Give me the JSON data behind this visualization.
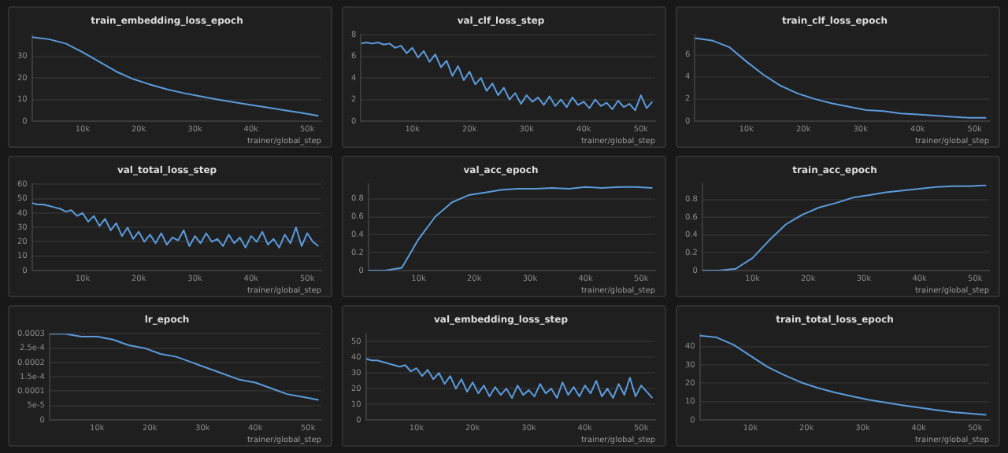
{
  "chart_data": [
    {
      "type": "line",
      "title": "train_embedding_loss_epoch",
      "xlabel": "trainer/global_step",
      "x": [
        1000,
        4000,
        7000,
        10000,
        13000,
        16000,
        19000,
        22000,
        25000,
        28000,
        31000,
        34000,
        37000,
        40000,
        43000,
        46000,
        49000,
        52000
      ],
      "series": [
        {
          "color": "#5b9bdc",
          "values": [
            39,
            38,
            36,
            32,
            27.5,
            23,
            19.5,
            17,
            14.8,
            13,
            11.5,
            10,
            8.8,
            7.5,
            6.3,
            5,
            3.8,
            2.5
          ]
        }
      ],
      "xlim": [
        1000,
        52500
      ],
      "xticks": [
        {
          "value": 10000,
          "label": "10k"
        },
        {
          "value": 20000,
          "label": "20k"
        },
        {
          "value": 30000,
          "label": "30k"
        },
        {
          "value": 40000,
          "label": "40k"
        },
        {
          "value": 50000,
          "label": "50k"
        }
      ],
      "ylim": [
        0,
        40
      ],
      "yticks": [
        0,
        10,
        20,
        30
      ],
      "grid": "y",
      "legend": false,
      "marker": "none"
    },
    {
      "type": "line",
      "title": "val_clf_loss_step",
      "xlabel": "trainer/global_step",
      "x": [
        1000,
        2000,
        3000,
        4000,
        5000,
        6000,
        7000,
        8000,
        9000,
        10000,
        11000,
        12000,
        13000,
        14000,
        15000,
        16000,
        17000,
        18000,
        19000,
        20000,
        21000,
        22000,
        23000,
        24000,
        25000,
        26000,
        27000,
        28000,
        29000,
        30000,
        31000,
        32000,
        33000,
        34000,
        35000,
        36000,
        37000,
        38000,
        39000,
        40000,
        41000,
        42000,
        43000,
        44000,
        45000,
        46000,
        47000,
        48000,
        49000,
        50000,
        51000,
        52000
      ],
      "series": [
        {
          "color": "#5b9bdc",
          "values": [
            7.2,
            7.3,
            7.2,
            7.3,
            7.1,
            7.2,
            6.8,
            7.0,
            6.3,
            6.8,
            5.9,
            6.5,
            5.5,
            6.2,
            5.0,
            5.6,
            4.2,
            5.1,
            3.8,
            4.6,
            3.4,
            4.0,
            2.8,
            3.5,
            2.4,
            3.1,
            2.0,
            2.6,
            1.6,
            2.4,
            1.8,
            2.2,
            1.5,
            2.3,
            1.4,
            2.0,
            1.3,
            2.2,
            1.5,
            1.8,
            1.2,
            2.0,
            1.4,
            1.7,
            1.1,
            1.9,
            1.3,
            1.6,
            1.0,
            2.4,
            1.2,
            1.8
          ]
        }
      ],
      "xlim": [
        1000,
        52500
      ],
      "xticks": [
        {
          "value": 10000,
          "label": "10k"
        },
        {
          "value": 20000,
          "label": "20k"
        },
        {
          "value": 30000,
          "label": "30k"
        },
        {
          "value": 40000,
          "label": "40k"
        },
        {
          "value": 50000,
          "label": "50k"
        }
      ],
      "ylim": [
        0,
        8
      ],
      "yticks": [
        0,
        2,
        4,
        6,
        8
      ],
      "grid": "y",
      "legend": false,
      "marker": "none"
    },
    {
      "type": "line",
      "title": "train_clf_loss_epoch",
      "xlabel": "trainer/global_step",
      "x": [
        1000,
        4000,
        7000,
        10000,
        13000,
        16000,
        19000,
        22000,
        25000,
        28000,
        31000,
        34000,
        37000,
        40000,
        43000,
        46000,
        49000,
        52000
      ],
      "series": [
        {
          "color": "#5b9bdc",
          "values": [
            7.5,
            7.3,
            6.7,
            5.4,
            4.2,
            3.2,
            2.5,
            2.0,
            1.6,
            1.3,
            1.0,
            0.9,
            0.7,
            0.6,
            0.5,
            0.4,
            0.3,
            0.3
          ]
        }
      ],
      "xlim": [
        1000,
        52500
      ],
      "xticks": [
        {
          "value": 10000,
          "label": "10k"
        },
        {
          "value": 20000,
          "label": "20k"
        },
        {
          "value": 30000,
          "label": "30k"
        },
        {
          "value": 40000,
          "label": "40k"
        },
        {
          "value": 50000,
          "label": "50k"
        }
      ],
      "ylim": [
        0,
        7.8
      ],
      "yticks": [
        0,
        2,
        4,
        6
      ],
      "grid": "y",
      "legend": false,
      "marker": "none"
    },
    {
      "type": "line",
      "title": "val_total_loss_step",
      "xlabel": "trainer/global_step",
      "x": [
        1000,
        2000,
        3000,
        4000,
        5000,
        6000,
        7000,
        8000,
        9000,
        10000,
        11000,
        12000,
        13000,
        14000,
        15000,
        16000,
        17000,
        18000,
        19000,
        20000,
        21000,
        22000,
        23000,
        24000,
        25000,
        26000,
        27000,
        28000,
        29000,
        30000,
        31000,
        32000,
        33000,
        34000,
        35000,
        36000,
        37000,
        38000,
        39000,
        40000,
        41000,
        42000,
        43000,
        44000,
        45000,
        46000,
        47000,
        48000,
        49000,
        50000,
        51000,
        52000
      ],
      "series": [
        {
          "color": "#5b9bdc",
          "values": [
            47,
            46,
            46,
            45,
            44,
            43,
            41,
            42,
            38,
            40,
            34,
            38,
            31,
            36,
            28,
            33,
            24,
            30,
            22,
            27,
            20,
            25,
            19,
            26,
            18,
            23,
            21,
            28,
            17,
            24,
            19,
            26,
            20,
            22,
            17,
            25,
            19,
            23,
            16,
            24,
            20,
            27,
            18,
            22,
            16,
            25,
            19,
            30,
            17,
            26,
            20,
            17
          ]
        }
      ],
      "xlim": [
        1000,
        52500
      ],
      "xticks": [
        {
          "value": 10000,
          "label": "10k"
        },
        {
          "value": 20000,
          "label": "20k"
        },
        {
          "value": 30000,
          "label": "30k"
        },
        {
          "value": 40000,
          "label": "40k"
        },
        {
          "value": 50000,
          "label": "50k"
        }
      ],
      "ylim": [
        0,
        60
      ],
      "yticks": [
        0,
        10,
        20,
        30,
        40,
        50,
        60
      ],
      "grid": "y",
      "legend": false,
      "marker": "none"
    },
    {
      "type": "line",
      "title": "val_acc_epoch",
      "xlabel": "trainer/global_step",
      "x": [
        1000,
        4000,
        7000,
        10000,
        13000,
        16000,
        19000,
        22000,
        25000,
        28000,
        31000,
        34000,
        37000,
        40000,
        43000,
        46000,
        49000,
        52000
      ],
      "series": [
        {
          "color": "#5b9bdc",
          "values": [
            0,
            0,
            0.03,
            0.35,
            0.6,
            0.76,
            0.84,
            0.87,
            0.9,
            0.91,
            0.91,
            0.92,
            0.91,
            0.93,
            0.92,
            0.93,
            0.93,
            0.92
          ]
        }
      ],
      "xlim": [
        1000,
        52500
      ],
      "xticks": [
        {
          "value": 10000,
          "label": "10k"
        },
        {
          "value": 20000,
          "label": "20k"
        },
        {
          "value": 30000,
          "label": "30k"
        },
        {
          "value": 40000,
          "label": "40k"
        },
        {
          "value": 50000,
          "label": "50k"
        }
      ],
      "ylim": [
        0,
        0.96
      ],
      "yticks": [
        0,
        0.2,
        0.4,
        0.6,
        0.8
      ],
      "grid": "y",
      "legend": false,
      "marker": "none"
    },
    {
      "type": "line",
      "title": "train_acc_epoch",
      "xlabel": "trainer/global_step",
      "x": [
        1000,
        4000,
        7000,
        10000,
        13000,
        16000,
        19000,
        22000,
        25000,
        28000,
        31000,
        34000,
        37000,
        40000,
        43000,
        46000,
        49000,
        52000
      ],
      "series": [
        {
          "color": "#5b9bdc",
          "values": [
            0,
            0,
            0.02,
            0.14,
            0.34,
            0.52,
            0.63,
            0.71,
            0.76,
            0.82,
            0.85,
            0.88,
            0.9,
            0.92,
            0.94,
            0.95,
            0.95,
            0.96
          ]
        }
      ],
      "xlim": [
        1000,
        52500
      ],
      "xticks": [
        {
          "value": 10000,
          "label": "10k"
        },
        {
          "value": 20000,
          "label": "20k"
        },
        {
          "value": 30000,
          "label": "30k"
        },
        {
          "value": 40000,
          "label": "40k"
        },
        {
          "value": 50000,
          "label": "50k"
        }
      ],
      "ylim": [
        0,
        0.97
      ],
      "yticks": [
        0,
        0.2,
        0.4,
        0.6,
        0.8
      ],
      "grid": "y",
      "legend": false,
      "marker": "none"
    },
    {
      "type": "line",
      "title": "lr_epoch",
      "xlabel": "trainer/global_step",
      "x": [
        1000,
        4000,
        7000,
        10000,
        13000,
        16000,
        19000,
        22000,
        25000,
        28000,
        31000,
        34000,
        37000,
        40000,
        43000,
        46000,
        49000,
        52000
      ],
      "series": [
        {
          "color": "#5b9bdc",
          "values": [
            0.0003,
            0.0003,
            0.00029,
            0.00029,
            0.00028,
            0.00026,
            0.00025,
            0.00023,
            0.00022,
            0.0002,
            0.00018,
            0.00016,
            0.00014,
            0.00013,
            0.00011,
            9e-05,
            8e-05,
            7e-05
          ]
        }
      ],
      "xlim": [
        1000,
        52500
      ],
      "xticks": [
        {
          "value": 10000,
          "label": "10k"
        },
        {
          "value": 20000,
          "label": "20k"
        },
        {
          "value": 30000,
          "label": "30k"
        },
        {
          "value": 40000,
          "label": "40k"
        },
        {
          "value": 50000,
          "label": "50k"
        }
      ],
      "ylim": [
        0,
        0.0003
      ],
      "yticks": [
        0,
        {
          "value": 5e-05,
          "label": "5e-5"
        },
        0.0001,
        {
          "value": 0.00015,
          "label": "1.5e-4"
        },
        0.0002,
        {
          "value": 0.00025,
          "label": "2.5e-4"
        },
        0.0003
      ],
      "grid": "y",
      "legend": false,
      "marker": "none"
    },
    {
      "type": "line",
      "title": "val_embedding_loss_step",
      "xlabel": "trainer/global_step",
      "x": [
        1000,
        2000,
        3000,
        4000,
        5000,
        6000,
        7000,
        8000,
        9000,
        10000,
        11000,
        12000,
        13000,
        14000,
        15000,
        16000,
        17000,
        18000,
        19000,
        20000,
        21000,
        22000,
        23000,
        24000,
        25000,
        26000,
        27000,
        28000,
        29000,
        30000,
        31000,
        32000,
        33000,
        34000,
        35000,
        36000,
        37000,
        38000,
        39000,
        40000,
        41000,
        42000,
        43000,
        44000,
        45000,
        46000,
        47000,
        48000,
        49000,
        50000,
        51000,
        52000
      ],
      "series": [
        {
          "color": "#5b9bdc",
          "values": [
            39,
            38,
            38,
            37,
            36,
            35,
            34,
            35,
            31,
            33,
            28,
            32,
            26,
            30,
            23,
            28,
            20,
            26,
            18,
            24,
            17,
            22,
            15,
            21,
            16,
            20,
            14,
            22,
            16,
            19,
            15,
            23,
            17,
            20,
            14,
            24,
            16,
            21,
            15,
            22,
            17,
            25,
            15,
            20,
            14,
            23,
            16,
            27,
            15,
            22,
            18,
            14
          ]
        }
      ],
      "xlim": [
        1000,
        52500
      ],
      "xticks": [
        {
          "value": 10000,
          "label": "10k"
        },
        {
          "value": 20000,
          "label": "20k"
        },
        {
          "value": 30000,
          "label": "30k"
        },
        {
          "value": 40000,
          "label": "40k"
        },
        {
          "value": 50000,
          "label": "50k"
        }
      ],
      "ylim": [
        0,
        55
      ],
      "yticks": [
        0,
        10,
        20,
        30,
        40,
        50
      ],
      "grid": "y",
      "legend": false,
      "marker": "none"
    },
    {
      "type": "line",
      "title": "train_total_loss_epoch",
      "xlabel": "trainer/global_step",
      "x": [
        1000,
        4000,
        7000,
        10000,
        13000,
        16000,
        19000,
        22000,
        25000,
        28000,
        31000,
        34000,
        37000,
        40000,
        43000,
        46000,
        49000,
        52000
      ],
      "series": [
        {
          "color": "#5b9bdc",
          "values": [
            46,
            45,
            41,
            35,
            29,
            24.5,
            20.5,
            17.5,
            15,
            13,
            11,
            9.5,
            8,
            6.8,
            5.5,
            4.3,
            3.5,
            2.8
          ]
        }
      ],
      "xlim": [
        1000,
        52500
      ],
      "xticks": [
        {
          "value": 10000,
          "label": "10k"
        },
        {
          "value": 20000,
          "label": "20k"
        },
        {
          "value": 30000,
          "label": "30k"
        },
        {
          "value": 40000,
          "label": "40k"
        },
        {
          "value": 50000,
          "label": "50k"
        }
      ],
      "ylim": [
        0,
        47
      ],
      "yticks": [
        0,
        10,
        20,
        30,
        40
      ],
      "grid": "y",
      "legend": false,
      "marker": "none"
    }
  ]
}
